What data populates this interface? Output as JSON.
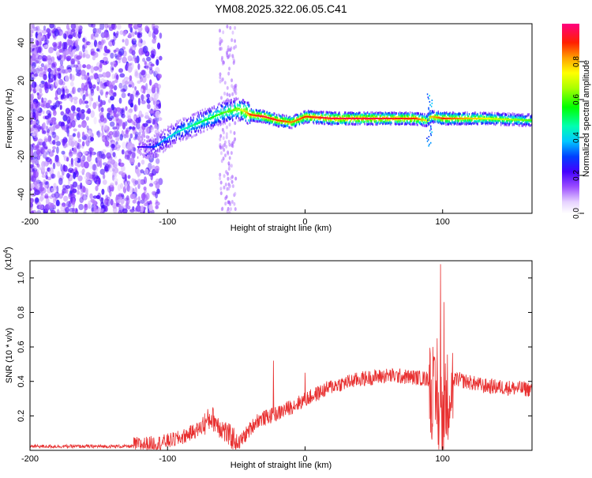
{
  "title": "YM08.2025.322.06.05.C41",
  "chart_data": [
    {
      "type": "heatmap",
      "panel": "spectrogram",
      "xlabel": "Height of straight line (km)",
      "ylabel": "Frequency (Hz)",
      "xlim": [
        -200,
        165
      ],
      "ylim": [
        -50,
        50
      ],
      "x_ticks": [
        -200,
        -100,
        0,
        100
      ],
      "x_tick_labels": [
        "-200",
        "-100",
        "0",
        "100"
      ],
      "y_ticks": [
        -40,
        -20,
        0,
        20,
        40
      ],
      "y_tick_labels": [
        "-40",
        "-20",
        "0",
        "20",
        "40"
      ],
      "colorbar": {
        "label": "Normalized spectral amplitude",
        "range": [
          0,
          1
        ],
        "ticks": [
          0,
          0.2,
          0.4,
          0.6,
          0.8
        ],
        "tick_labels": [
          "0.0",
          "0.2",
          "0.4",
          "0.6",
          "0.8"
        ]
      },
      "ridge": {
        "x": [
          -120,
          -110,
          -100,
          -90,
          -80,
          -70,
          -60,
          -50,
          -45,
          -40,
          -30,
          -20,
          -10,
          0,
          20,
          50,
          80,
          88,
          92,
          100,
          130,
          165
        ],
        "y": [
          -15,
          -15,
          -10,
          -6,
          -3,
          0,
          3,
          5,
          4,
          2,
          1,
          -1,
          -2,
          1,
          0,
          0,
          0,
          -1,
          1,
          0,
          0,
          -1
        ],
        "amplitude": [
          0.15,
          0.25,
          0.35,
          0.4,
          0.45,
          0.5,
          0.55,
          0.6,
          0.7,
          0.85,
          0.9,
          0.85,
          0.8,
          0.85,
          0.9,
          0.9,
          0.85,
          0.7,
          0.75,
          0.85,
          0.7,
          0.55
        ]
      }
    },
    {
      "type": "line",
      "panel": "snr",
      "xlabel": "Height of straight line (km)",
      "ylabel": "SNR (10 * v/v)",
      "y_multiplier": "(x10",
      "y_multiplier_exp": "4",
      "y_multiplier_close": ")",
      "xlim": [
        -200,
        165
      ],
      "ylim": [
        0,
        1.1
      ],
      "x_ticks": [
        -200,
        -100,
        0,
        100
      ],
      "x_tick_labels": [
        "-200",
        "-100",
        "0",
        "100"
      ],
      "y_ticks": [
        0.2,
        0.4,
        0.6,
        0.8,
        1.0
      ],
      "y_tick_labels": [
        "0.2",
        "0.4",
        "0.6",
        "0.8",
        "1.0"
      ],
      "color": "#e83030",
      "envelope": {
        "x": [
          -200,
          -120,
          -105,
          -90,
          -75,
          -68,
          -62,
          -55,
          -48,
          -35,
          -20,
          0,
          20,
          40,
          60,
          80,
          90,
          95,
          98,
          100,
          105,
          110,
          130,
          165
        ],
        "y": [
          0.02,
          0.02,
          0.03,
          0.06,
          0.12,
          0.17,
          0.12,
          0.06,
          0.03,
          0.16,
          0.2,
          0.28,
          0.36,
          0.4,
          0.42,
          0.41,
          0.4,
          0.25,
          0.2,
          0.2,
          0.36,
          0.4,
          0.36,
          0.34
        ]
      },
      "peaks": {
        "x": [
          -23,
          0,
          93,
          96,
          98.5,
          101
        ],
        "y": [
          0.52,
          0.45,
          0.6,
          0.65,
          1.08,
          0.86
        ]
      }
    }
  ]
}
